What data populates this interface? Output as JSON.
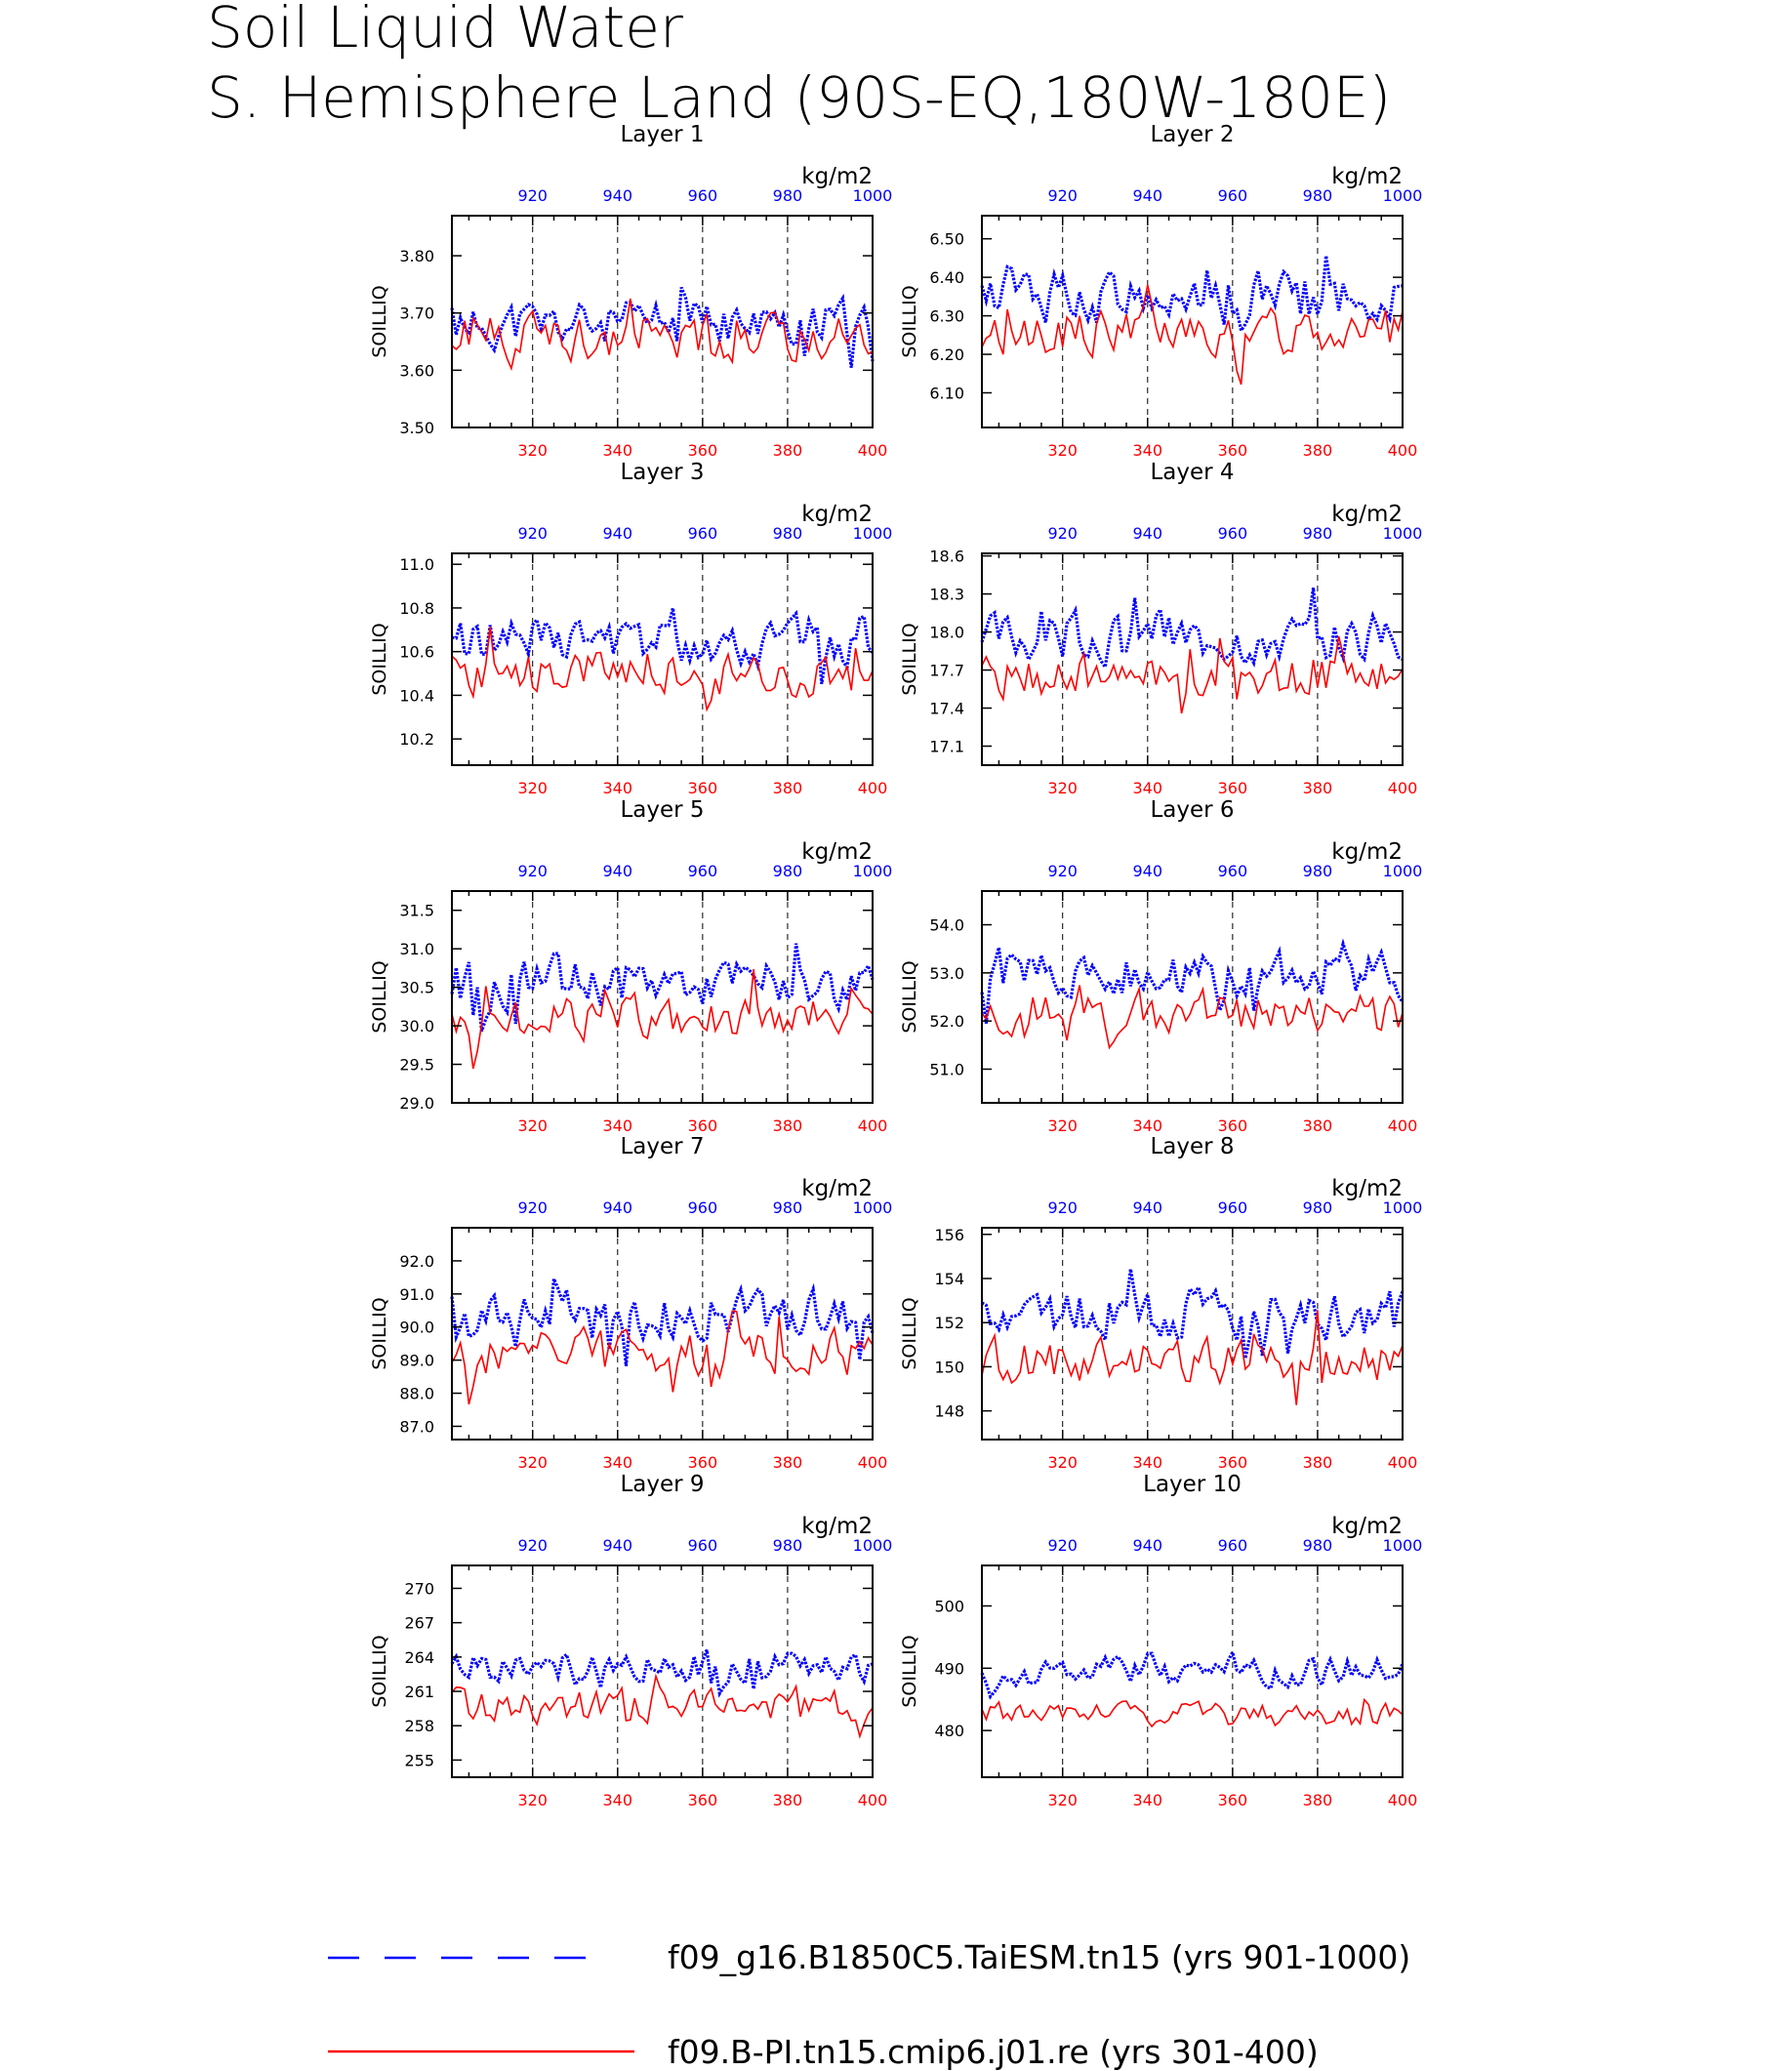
{
  "figure": {
    "title_line1": "Soil Liquid Water",
    "title_line2": "S. Hemisphere Land (90S-EQ,180W-180E)"
  },
  "colors": {
    "series_blue": "#0000ff",
    "series_red": "#ff0000",
    "axis": "#000000"
  },
  "legend": [
    {
      "label": "f09_g16.B1850C5.TaiESM.tn15 (yrs 901-1000)",
      "color": "#0000ff",
      "style": "dashed"
    },
    {
      "label": "f09.B-PI.tn15.cmip6.j01.re (yrs 301-400)",
      "color": "#ff0000",
      "style": "solid"
    }
  ],
  "chart_data": [
    {
      "type": "line",
      "title": "Layer 1",
      "units": "kg/m2",
      "ylabel": "SOILLIQ",
      "ylim": [
        3.5,
        3.87
      ],
      "yticks": [
        "3.50",
        "3.60",
        "3.70",
        "3.80"
      ],
      "x_bottom_ticks": [
        "320",
        "340",
        "360",
        "380",
        "400"
      ],
      "x_top_ticks": [
        "920",
        "940",
        "960",
        "980",
        "1000"
      ],
      "x_bottom_range": [
        301,
        400
      ],
      "x_top_range": [
        901,
        1000
      ],
      "grid": "dashed vertical lines at 320,340,360,380",
      "series": [
        {
          "name": "f09_g16.B1850C5.TaiESM.tn15 (yrs 901-1000)",
          "color": "#0000ff",
          "x_axis": "top",
          "base": 3.68,
          "amp": 0.055,
          "seed": 11
        },
        {
          "name": "f09.B-PI.tn15.cmip6.j01.re (yrs 301-400)",
          "color": "#ff0000",
          "x_axis": "bottom",
          "base": 3.66,
          "amp": 0.055,
          "seed": 21
        }
      ]
    },
    {
      "type": "line",
      "title": "Layer 2",
      "units": "kg/m2",
      "ylabel": "SOILLIQ",
      "ylim": [
        6.01,
        6.56
      ],
      "yticks": [
        "6.10",
        "6.20",
        "6.30",
        "6.40",
        "6.50"
      ],
      "x_bottom_ticks": [
        "320",
        "340",
        "360",
        "380",
        "400"
      ],
      "x_top_ticks": [
        "920",
        "940",
        "960",
        "980",
        "1000"
      ],
      "x_bottom_range": [
        301,
        400
      ],
      "x_top_range": [
        901,
        1000
      ],
      "grid": "dashed vertical lines at 320,340,360,380",
      "series": [
        {
          "name": "f09_g16.B1850C5.TaiESM.tn15 (yrs 901-1000)",
          "color": "#0000ff",
          "x_axis": "top",
          "base": 6.35,
          "amp": 0.09,
          "seed": 12
        },
        {
          "name": "f09.B-PI.tn15.cmip6.j01.re (yrs 301-400)",
          "color": "#ff0000",
          "x_axis": "bottom",
          "base": 6.26,
          "amp": 0.08,
          "seed": 22
        }
      ]
    },
    {
      "type": "line",
      "title": "Layer 3",
      "units": "kg/m2",
      "ylabel": "SOILLIQ",
      "ylim": [
        10.08,
        11.05
      ],
      "yticks": [
        "10.2",
        "10.4",
        "10.6",
        "10.8",
        "11.0"
      ],
      "x_bottom_ticks": [
        "320",
        "340",
        "360",
        "380",
        "400"
      ],
      "x_top_ticks": [
        "920",
        "940",
        "960",
        "980",
        "1000"
      ],
      "x_bottom_range": [
        301,
        400
      ],
      "x_top_range": [
        901,
        1000
      ],
      "grid": "dashed vertical lines at 320,340,360,380",
      "series": [
        {
          "name": "f09_g16.B1850C5.TaiESM.tn15 (yrs 901-1000)",
          "color": "#0000ff",
          "x_axis": "top",
          "base": 10.65,
          "amp": 0.15,
          "seed": 13
        },
        {
          "name": "f09.B-PI.tn15.cmip6.j01.re (yrs 301-400)",
          "color": "#ff0000",
          "x_axis": "bottom",
          "base": 10.5,
          "amp": 0.14,
          "seed": 23
        }
      ]
    },
    {
      "type": "line",
      "title": "Layer 4",
      "units": "kg/m2",
      "ylabel": "SOILLIQ",
      "ylim": [
        16.95,
        18.62
      ],
      "yticks": [
        "17.1",
        "17.4",
        "17.7",
        "18.0",
        "18.3",
        "18.6"
      ],
      "x_bottom_ticks": [
        "320",
        "340",
        "360",
        "380",
        "400"
      ],
      "x_top_ticks": [
        "920",
        "940",
        "960",
        "980",
        "1000"
      ],
      "x_bottom_range": [
        301,
        400
      ],
      "x_top_range": [
        901,
        1000
      ],
      "grid": "dashed vertical lines at 320,340,360,380",
      "series": [
        {
          "name": "f09_g16.B1850C5.TaiESM.tn15 (yrs 901-1000)",
          "color": "#0000ff",
          "x_axis": "top",
          "base": 17.95,
          "amp": 0.26,
          "seed": 14
        },
        {
          "name": "f09.B-PI.tn15.cmip6.j01.re (yrs 301-400)",
          "color": "#ff0000",
          "x_axis": "bottom",
          "base": 17.65,
          "amp": 0.24,
          "seed": 24
        }
      ]
    },
    {
      "type": "line",
      "title": "Layer 5",
      "units": "kg/m2",
      "ylabel": "SOILLIQ",
      "ylim": [
        29.0,
        31.75
      ],
      "yticks": [
        "29.0",
        "29.5",
        "30.0",
        "30.5",
        "31.0",
        "31.5"
      ],
      "x_bottom_ticks": [
        "320",
        "340",
        "360",
        "380",
        "400"
      ],
      "x_top_ticks": [
        "920",
        "940",
        "960",
        "980",
        "1000"
      ],
      "x_bottom_range": [
        301,
        400
      ],
      "x_top_range": [
        901,
        1000
      ],
      "grid": "dashed vertical lines at 320,340,360,380",
      "series": [
        {
          "name": "f09_g16.B1850C5.TaiESM.tn15 (yrs 901-1000)",
          "color": "#0000ff",
          "x_axis": "top",
          "base": 30.55,
          "amp": 0.42,
          "seed": 15
        },
        {
          "name": "f09.B-PI.tn15.cmip6.j01.re (yrs 301-400)",
          "color": "#ff0000",
          "x_axis": "bottom",
          "base": 30.1,
          "amp": 0.38,
          "seed": 25
        }
      ]
    },
    {
      "type": "line",
      "title": "Layer 6",
      "units": "kg/m2",
      "ylabel": "SOILLIQ",
      "ylim": [
        50.3,
        54.7
      ],
      "yticks": [
        "51.0",
        "52.0",
        "53.0",
        "54.0"
      ],
      "x_bottom_ticks": [
        "320",
        "340",
        "360",
        "380",
        "400"
      ],
      "x_top_ticks": [
        "920",
        "940",
        "960",
        "980",
        "1000"
      ],
      "x_bottom_range": [
        301,
        400
      ],
      "x_top_range": [
        901,
        1000
      ],
      "grid": "dashed vertical lines at 320,340,360,380",
      "series": [
        {
          "name": "f09_g16.B1850C5.TaiESM.tn15 (yrs 901-1000)",
          "color": "#0000ff",
          "x_axis": "top",
          "base": 52.95,
          "amp": 0.65,
          "seed": 16
        },
        {
          "name": "f09.B-PI.tn15.cmip6.j01.re (yrs 301-400)",
          "color": "#ff0000",
          "x_axis": "bottom",
          "base": 52.2,
          "amp": 0.6,
          "seed": 26
        }
      ]
    },
    {
      "type": "line",
      "title": "Layer 7",
      "units": "kg/m2",
      "ylabel": "SOILLIQ",
      "ylim": [
        86.6,
        93.0
      ],
      "yticks": [
        "87.0",
        "88.0",
        "89.0",
        "90.0",
        "91.0",
        "92.0"
      ],
      "x_bottom_ticks": [
        "320",
        "340",
        "360",
        "380",
        "400"
      ],
      "x_top_ticks": [
        "920",
        "940",
        "960",
        "980",
        "1000"
      ],
      "x_bottom_range": [
        301,
        400
      ],
      "x_top_range": [
        901,
        1000
      ],
      "grid": "dashed vertical lines at 320,340,360,380",
      "series": [
        {
          "name": "f09_g16.B1850C5.TaiESM.tn15 (yrs 901-1000)",
          "color": "#0000ff",
          "x_axis": "top",
          "base": 90.4,
          "amp": 0.95,
          "seed": 17
        },
        {
          "name": "f09.B-PI.tn15.cmip6.j01.re (yrs 301-400)",
          "color": "#ff0000",
          "x_axis": "bottom",
          "base": 89.2,
          "amp": 0.95,
          "seed": 27
        }
      ]
    },
    {
      "type": "line",
      "title": "Layer 8",
      "units": "kg/m2",
      "ylabel": "SOILLIQ",
      "ylim": [
        146.7,
        156.3
      ],
      "yticks": [
        "148",
        "150",
        "152",
        "154",
        "156"
      ],
      "x_bottom_ticks": [
        "320",
        "340",
        "360",
        "380",
        "400"
      ],
      "x_top_ticks": [
        "920",
        "940",
        "960",
        "980",
        "1000"
      ],
      "x_bottom_range": [
        301,
        400
      ],
      "x_top_range": [
        901,
        1000
      ],
      "grid": "dashed vertical lines at 320,340,360,380",
      "series": [
        {
          "name": "f09_g16.B1850C5.TaiESM.tn15 (yrs 901-1000)",
          "color": "#0000ff",
          "x_axis": "top",
          "base": 152.4,
          "amp": 1.5,
          "seed": 18
        },
        {
          "name": "f09.B-PI.tn15.cmip6.j01.re (yrs 301-400)",
          "color": "#ff0000",
          "x_axis": "bottom",
          "base": 150.3,
          "amp": 1.4,
          "seed": 28
        }
      ]
    },
    {
      "type": "line",
      "title": "Layer 9",
      "units": "kg/m2",
      "ylabel": "SOILLIQ",
      "ylim": [
        253.5,
        272.0
      ],
      "yticks": [
        "255",
        "258",
        "261",
        "264",
        "267",
        "270"
      ],
      "x_bottom_ticks": [
        "320",
        "340",
        "360",
        "380",
        "400"
      ],
      "x_top_ticks": [
        "920",
        "940",
        "960",
        "980",
        "1000"
      ],
      "x_bottom_range": [
        301,
        400
      ],
      "x_top_range": [
        901,
        1000
      ],
      "grid": "dashed vertical lines at 320,340,360,380",
      "series": [
        {
          "name": "f09_g16.B1850C5.TaiESM.tn15 (yrs 901-1000)",
          "color": "#0000ff",
          "x_axis": "top",
          "base": 263.2,
          "amp": 1.8,
          "seed": 19
        },
        {
          "name": "f09.B-PI.tn15.cmip6.j01.re (yrs 301-400)",
          "color": "#ff0000",
          "x_axis": "bottom",
          "base": 259.8,
          "amp": 1.9,
          "seed": 29
        }
      ]
    },
    {
      "type": "line",
      "title": "Layer 10",
      "units": "kg/m2",
      "ylabel": "SOILLIQ",
      "ylim": [
        472.5,
        506.5
      ],
      "yticks": [
        "480",
        "490",
        "500"
      ],
      "x_bottom_ticks": [
        "320",
        "340",
        "360",
        "380",
        "400"
      ],
      "x_top_ticks": [
        "920",
        "940",
        "960",
        "980",
        "1000"
      ],
      "x_bottom_range": [
        301,
        400
      ],
      "x_top_range": [
        901,
        1000
      ],
      "grid": "dashed vertical lines at 320,340,360,380",
      "series": [
        {
          "name": "f09_g16.B1850C5.TaiESM.tn15 (yrs 901-1000)",
          "color": "#0000ff",
          "x_axis": "top",
          "base": 489.5,
          "amp": 3.0,
          "seed": 20
        },
        {
          "name": "f09.B-PI.tn15.cmip6.j01.re (yrs 301-400)",
          "color": "#ff0000",
          "x_axis": "bottom",
          "base": 482.5,
          "amp": 2.6,
          "seed": 30
        }
      ]
    }
  ]
}
